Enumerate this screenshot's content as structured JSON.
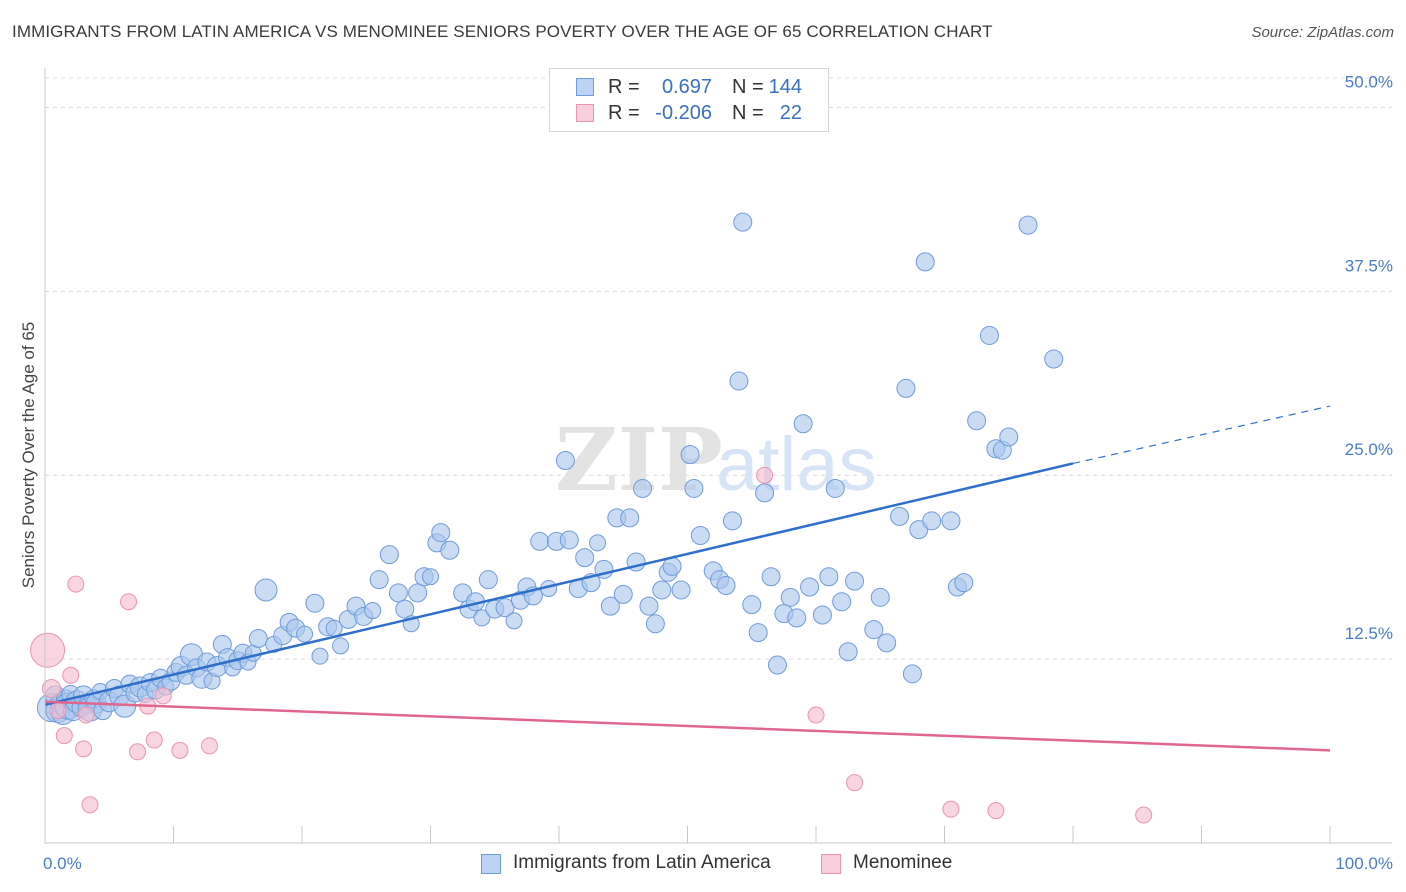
{
  "title": "IMMIGRANTS FROM LATIN AMERICA VS MENOMINEE SENIORS POVERTY OVER THE AGE OF 65 CORRELATION CHART",
  "source": "Source: ZipAtlas.com",
  "watermark": {
    "zip": "ZIP",
    "atlas": "atlas"
  },
  "colors": {
    "blue_fill": "#a9c6ee",
    "blue_stroke": "#6f9cd8",
    "blue_line": "#2f6fcb",
    "pink_fill": "#f6bcd0",
    "pink_stroke": "#e895b2",
    "pink_line": "#e0668f",
    "grid": "#dcdcdc",
    "tick_text": "#4a7cc7"
  },
  "legend": {
    "r_label": "R =",
    "n_label": "N =",
    "series": [
      {
        "r": "0.697",
        "n": "144"
      },
      {
        "r": "-0.206",
        "n": "22"
      }
    ]
  },
  "bottom_legend": {
    "series_a": "Immigrants from Latin America",
    "series_b": "Menominee"
  },
  "chart_data": {
    "type": "scatter",
    "title": "IMMIGRANTS FROM LATIN AMERICA VS MENOMINEE SENIORS POVERTY OVER THE AGE OF 65 CORRELATION CHART",
    "xlabel": "",
    "ylabel": "Seniors Poverty Over the Age of 65",
    "xlim": [
      0,
      100
    ],
    "ylim": [
      0,
      52
    ],
    "x_tick_labels": [
      "0.0%",
      "100.0%"
    ],
    "y_ticks": [
      12.5,
      25.0,
      37.5,
      50.0
    ],
    "y_tick_labels": [
      "12.5%",
      "25.0%",
      "37.5%",
      "50.0%"
    ],
    "grid": true,
    "legend_position": "top-center",
    "series": [
      {
        "name": "Immigrants from Latin America",
        "r": 0.697,
        "n": 144,
        "trend": {
          "x": [
            0,
            80,
            100
          ],
          "y": [
            9.4,
            25.8,
            29.7
          ],
          "solid_until": 80
        },
        "points": [
          [
            0.5,
            9.2,
            14
          ],
          [
            0.8,
            10.0,
            10
          ],
          [
            1.0,
            9.0,
            12
          ],
          [
            1.2,
            9.5,
            10
          ],
          [
            1.4,
            8.8,
            11
          ],
          [
            1.6,
            9.8,
            9
          ],
          [
            1.8,
            9.3,
            13
          ],
          [
            2.0,
            10.1,
            9
          ],
          [
            2.2,
            9.0,
            10
          ],
          [
            2.5,
            9.6,
            11
          ],
          [
            2.8,
            9.2,
            9
          ],
          [
            3.0,
            10.0,
            10
          ],
          [
            3.3,
            9.4,
            9
          ],
          [
            3.5,
            9.1,
            12
          ],
          [
            3.8,
            9.8,
            9
          ],
          [
            4.0,
            9.5,
            10
          ],
          [
            4.3,
            10.3,
            8
          ],
          [
            4.5,
            9.0,
            9
          ],
          [
            5.0,
            9.6,
            10
          ],
          [
            5.4,
            10.5,
            9
          ],
          [
            5.8,
            10.0,
            10
          ],
          [
            6.2,
            9.3,
            11
          ],
          [
            6.6,
            10.8,
            9
          ],
          [
            7.0,
            10.2,
            9
          ],
          [
            7.4,
            10.6,
            10
          ],
          [
            7.8,
            10.1,
            8
          ],
          [
            8.2,
            10.9,
            9
          ],
          [
            8.6,
            10.4,
            9
          ],
          [
            9.0,
            11.2,
            9
          ],
          [
            9.4,
            10.6,
            8
          ],
          [
            9.8,
            11.0,
            9
          ],
          [
            10.2,
            11.6,
            9
          ],
          [
            10.6,
            12.0,
            10
          ],
          [
            11.0,
            11.4,
            9
          ],
          [
            11.4,
            12.8,
            11
          ],
          [
            11.8,
            11.9,
            9
          ],
          [
            12.2,
            11.2,
            10
          ],
          [
            12.6,
            12.3,
            9
          ],
          [
            13.0,
            11.0,
            8
          ],
          [
            13.4,
            12.0,
            10
          ],
          [
            13.8,
            13.5,
            9
          ],
          [
            14.2,
            12.6,
            9
          ],
          [
            14.6,
            11.9,
            8
          ],
          [
            15.0,
            12.4,
            9
          ],
          [
            15.4,
            12.9,
            9
          ],
          [
            15.8,
            12.3,
            8
          ],
          [
            16.2,
            12.9,
            8
          ],
          [
            16.6,
            13.9,
            9
          ],
          [
            17.2,
            17.2,
            11
          ],
          [
            17.8,
            13.5,
            8
          ],
          [
            18.5,
            14.1,
            9
          ],
          [
            19.0,
            15.0,
            9
          ],
          [
            19.5,
            14.6,
            9
          ],
          [
            20.2,
            14.2,
            8
          ],
          [
            21.0,
            16.3,
            9
          ],
          [
            21.4,
            12.7,
            8
          ],
          [
            22.0,
            14.7,
            9
          ],
          [
            22.5,
            14.6,
            8
          ],
          [
            23.0,
            13.4,
            8
          ],
          [
            23.6,
            15.2,
            9
          ],
          [
            24.2,
            16.1,
            9
          ],
          [
            24.8,
            15.4,
            9
          ],
          [
            25.5,
            15.8,
            8
          ],
          [
            26.0,
            17.9,
            9
          ],
          [
            26.8,
            19.6,
            9
          ],
          [
            27.5,
            17.0,
            9
          ],
          [
            28.0,
            15.9,
            9
          ],
          [
            28.5,
            14.9,
            8
          ],
          [
            29.0,
            17.0,
            9
          ],
          [
            29.5,
            18.1,
            9
          ],
          [
            30.0,
            18.1,
            8
          ],
          [
            30.5,
            20.4,
            9
          ],
          [
            30.8,
            21.1,
            9
          ],
          [
            31.5,
            19.9,
            9
          ],
          [
            32.5,
            17.0,
            9
          ],
          [
            33.0,
            15.9,
            9
          ],
          [
            33.5,
            16.4,
            9
          ],
          [
            34.0,
            15.3,
            8
          ],
          [
            34.5,
            17.9,
            9
          ],
          [
            35.0,
            15.9,
            9
          ],
          [
            35.8,
            16.0,
            9
          ],
          [
            36.5,
            15.1,
            8
          ],
          [
            37.0,
            16.5,
            9
          ],
          [
            37.5,
            17.4,
            9
          ],
          [
            38.0,
            16.8,
            9
          ],
          [
            38.5,
            20.5,
            9
          ],
          [
            39.2,
            17.3,
            8
          ],
          [
            39.8,
            20.5,
            9
          ],
          [
            40.5,
            26.0,
            9
          ],
          [
            40.8,
            20.6,
            9
          ],
          [
            41.5,
            17.3,
            9
          ],
          [
            42.0,
            19.4,
            9
          ],
          [
            42.5,
            17.7,
            9
          ],
          [
            43.0,
            20.4,
            8
          ],
          [
            43.5,
            18.6,
            9
          ],
          [
            44.0,
            16.1,
            9
          ],
          [
            44.5,
            22.1,
            9
          ],
          [
            45.0,
            16.9,
            9
          ],
          [
            45.5,
            22.1,
            9
          ],
          [
            46.0,
            19.1,
            9
          ],
          [
            46.5,
            24.1,
            9
          ],
          [
            47.0,
            16.1,
            9
          ],
          [
            47.5,
            14.9,
            9
          ],
          [
            48.0,
            17.2,
            9
          ],
          [
            48.5,
            18.4,
            9
          ],
          [
            48.8,
            18.8,
            9
          ],
          [
            49.5,
            17.2,
            9
          ],
          [
            50.2,
            26.4,
            9
          ],
          [
            50.5,
            24.1,
            9
          ],
          [
            51.0,
            20.9,
            9
          ],
          [
            52.0,
            18.5,
            9
          ],
          [
            52.5,
            17.9,
            9
          ],
          [
            53.0,
            17.5,
            9
          ],
          [
            53.5,
            21.9,
            9
          ],
          [
            54.0,
            31.4,
            9
          ],
          [
            54.3,
            42.2,
            9
          ],
          [
            55.0,
            16.2,
            9
          ],
          [
            55.5,
            14.3,
            9
          ],
          [
            56.0,
            23.8,
            9
          ],
          [
            56.5,
            18.1,
            9
          ],
          [
            57.0,
            12.1,
            9
          ],
          [
            57.5,
            15.6,
            9
          ],
          [
            58.0,
            16.7,
            9
          ],
          [
            58.5,
            15.3,
            9
          ],
          [
            59.0,
            28.5,
            9
          ],
          [
            59.5,
            17.4,
            9
          ],
          [
            60.5,
            15.5,
            9
          ],
          [
            61.0,
            18.1,
            9
          ],
          [
            61.5,
            24.1,
            9
          ],
          [
            62.0,
            16.4,
            9
          ],
          [
            62.5,
            13.0,
            9
          ],
          [
            63.0,
            17.8,
            9
          ],
          [
            64.5,
            14.5,
            9
          ],
          [
            65.0,
            16.7,
            9
          ],
          [
            65.5,
            13.6,
            9
          ],
          [
            66.5,
            22.2,
            9
          ],
          [
            67.0,
            30.9,
            9
          ],
          [
            67.5,
            11.5,
            9
          ],
          [
            68.0,
            21.3,
            9
          ],
          [
            68.5,
            39.5,
            9
          ],
          [
            69.0,
            21.9,
            9
          ],
          [
            70.5,
            21.9,
            9
          ],
          [
            71.0,
            17.4,
            9
          ],
          [
            71.5,
            17.7,
            9
          ],
          [
            72.5,
            28.7,
            9
          ],
          [
            73.5,
            34.5,
            9
          ],
          [
            74.0,
            26.8,
            9
          ],
          [
            74.5,
            26.7,
            9
          ],
          [
            75.0,
            27.6,
            9
          ],
          [
            76.5,
            42.0,
            9
          ],
          [
            78.5,
            32.9,
            9
          ]
        ]
      },
      {
        "name": "Menominee",
        "r": -0.206,
        "n": 22,
        "trend": {
          "x": [
            0,
            100
          ],
          "y": [
            9.6,
            6.3
          ]
        },
        "points": [
          [
            0.2,
            13.1,
            17
          ],
          [
            0.5,
            10.5,
            9
          ],
          [
            1.0,
            9.0,
            8
          ],
          [
            1.5,
            7.3,
            8
          ],
          [
            2.0,
            11.4,
            8
          ],
          [
            2.4,
            17.6,
            8
          ],
          [
            3.0,
            6.4,
            8
          ],
          [
            3.2,
            8.7,
            8
          ],
          [
            3.5,
            2.6,
            8
          ],
          [
            6.5,
            16.4,
            8
          ],
          [
            7.2,
            6.2,
            8
          ],
          [
            8.0,
            9.3,
            8
          ],
          [
            8.5,
            7.0,
            8
          ],
          [
            9.2,
            10.0,
            8
          ],
          [
            10.5,
            6.3,
            8
          ],
          [
            12.8,
            6.6,
            8
          ],
          [
            56.0,
            25.0,
            8
          ],
          [
            60.0,
            8.7,
            8
          ],
          [
            63.0,
            4.1,
            8
          ],
          [
            70.5,
            2.3,
            8
          ],
          [
            74.0,
            2.2,
            8
          ],
          [
            85.5,
            1.9,
            8
          ]
        ]
      }
    ]
  }
}
